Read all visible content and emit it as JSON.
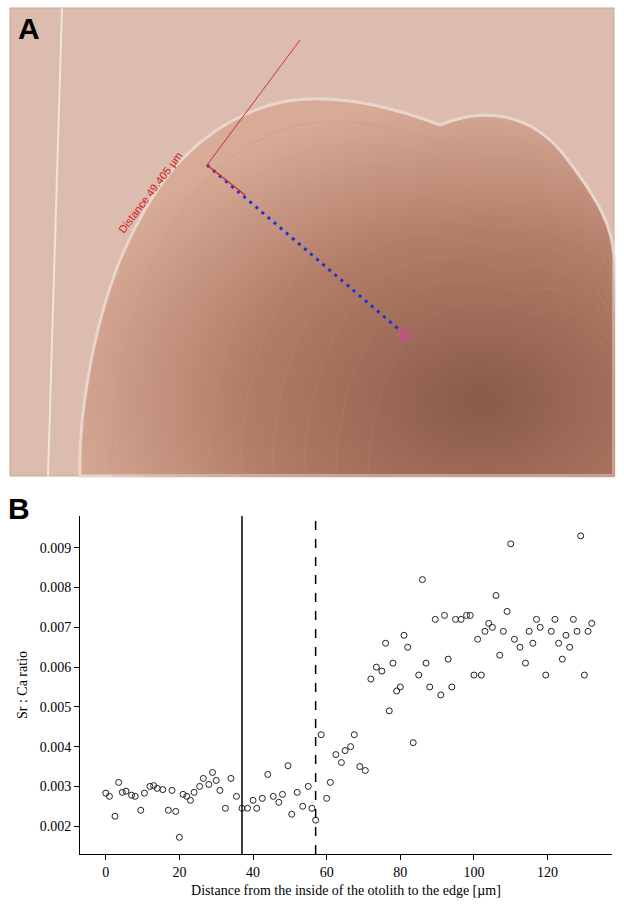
{
  "figure_a": {
    "letter": "A",
    "measurement_label": "Distance 49.405 µm"
  },
  "chart_data": {
    "type": "scatter",
    "letter": "B",
    "x_label": "Distance from the inside of the otolith to the edge [µm]",
    "y_label": "Sr : Ca ratio",
    "marker": "circle-open",
    "color": "#222222",
    "grid": false,
    "x": [
      0,
      1,
      2.5,
      3.5,
      4.5,
      5.5,
      7,
      8,
      9.5,
      10.5,
      12,
      13,
      14,
      15.5,
      17,
      18,
      19,
      20,
      21,
      22,
      23,
      24,
      25.5,
      26.5,
      28,
      29,
      30,
      31,
      32.5,
      34,
      35.5,
      37,
      38.5,
      40,
      41,
      42.5,
      44,
      45.5,
      47,
      48,
      49.5,
      50.5,
      52,
      53.5,
      55,
      56,
      57,
      58.5,
      60,
      61,
      62.5,
      64,
      65,
      66.5,
      67.5,
      69,
      70.5,
      72,
      73.5,
      75,
      76,
      77,
      78,
      79,
      80,
      81,
      82,
      83.5,
      85,
      86,
      87,
      88,
      89.5,
      91,
      92,
      93,
      94,
      95,
      96.5,
      98,
      99,
      100,
      101,
      102,
      103,
      104,
      105,
      106,
      107,
      108,
      109,
      110,
      111,
      112.5,
      114,
      115,
      116,
      117,
      118,
      119.5,
      121,
      122,
      123,
      124,
      125,
      126,
      127,
      128,
      129,
      130,
      131,
      132
    ],
    "values": [
      0.00283,
      0.00275,
      0.00225,
      0.0031,
      0.00285,
      0.00288,
      0.00278,
      0.00275,
      0.0024,
      0.00283,
      0.003,
      0.00302,
      0.00295,
      0.00292,
      0.0024,
      0.0029,
      0.00237,
      0.00172,
      0.0028,
      0.00275,
      0.00265,
      0.00285,
      0.003,
      0.0032,
      0.00305,
      0.00335,
      0.00315,
      0.0029,
      0.00245,
      0.0032,
      0.00275,
      0.00245,
      0.00245,
      0.00265,
      0.00245,
      0.0027,
      0.0033,
      0.00275,
      0.0026,
      0.0028,
      0.00352,
      0.0023,
      0.00285,
      0.0025,
      0.003,
      0.00245,
      0.00215,
      0.0043,
      0.0027,
      0.0031,
      0.0038,
      0.0036,
      0.0039,
      0.004,
      0.0043,
      0.0035,
      0.0034,
      0.0057,
      0.006,
      0.0059,
      0.0066,
      0.0049,
      0.0061,
      0.0054,
      0.0055,
      0.0068,
      0.0065,
      0.0041,
      0.0058,
      0.0082,
      0.0061,
      0.0055,
      0.0072,
      0.0053,
      0.0073,
      0.0062,
      0.0055,
      0.0072,
      0.0072,
      0.0073,
      0.0073,
      0.0058,
      0.0067,
      0.0058,
      0.0069,
      0.0071,
      0.007,
      0.0078,
      0.0063,
      0.0069,
      0.0074,
      0.0091,
      0.0067,
      0.0065,
      0.0061,
      0.0069,
      0.0066,
      0.0072,
      0.007,
      0.0058,
      0.0069,
      0.0072,
      0.0066,
      0.0062,
      0.0068,
      0.0065,
      0.0072,
      0.0069,
      0.0093,
      0.0058,
      0.0069,
      0.0071
    ],
    "reference_lines": [
      {
        "x": 37,
        "line_style": "solid"
      },
      {
        "x": 57,
        "line_style": "dashed"
      }
    ],
    "xlim": [
      -7,
      137.5
    ],
    "xticks": [
      0,
      20,
      40,
      60,
      80,
      100,
      120
    ],
    "ylim": [
      0.0013,
      0.0098
    ],
    "yticks": [
      0.002,
      0.003,
      0.004,
      0.005,
      0.006,
      0.007,
      0.008,
      0.009
    ]
  }
}
